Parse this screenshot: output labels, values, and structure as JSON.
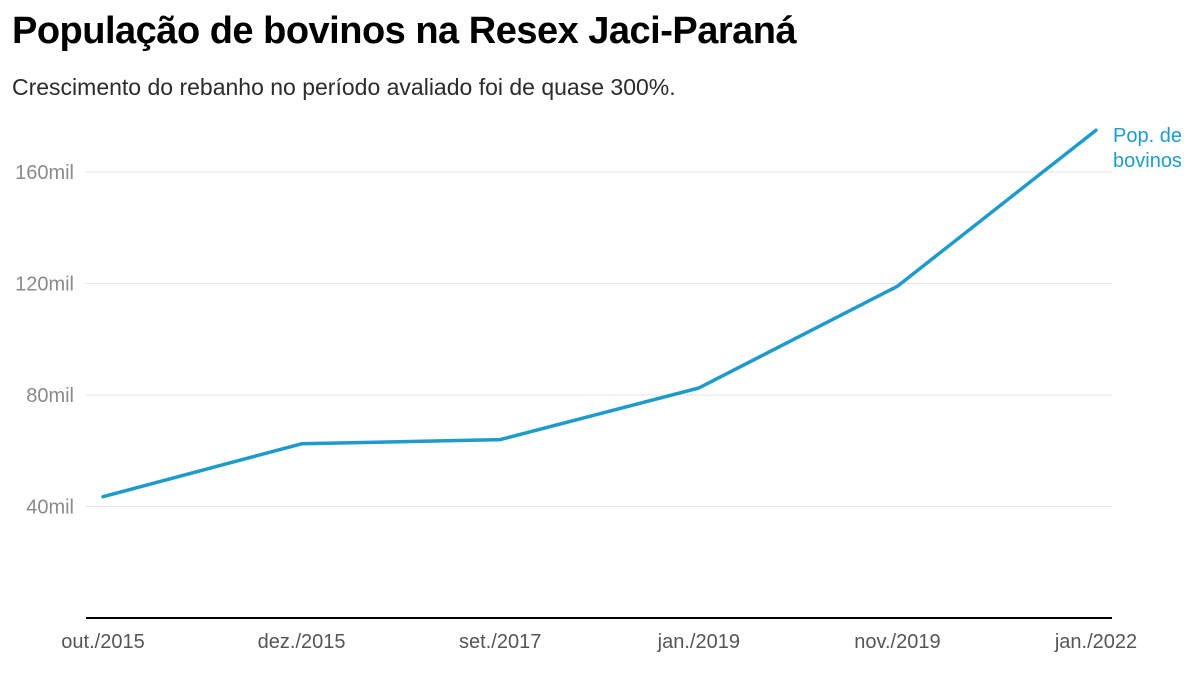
{
  "header": {
    "title": "População de bovinos na Resex Jaci-Paraná",
    "subtitle": "Crescimento do rebanho no período avaliado foi de quase 300%."
  },
  "colors": {
    "line": "#1e9bcc",
    "grid": "#e3e3e3",
    "axis": "#000000",
    "ytick": "#8a8a8a",
    "xtick": "#555555"
  },
  "chart_data": {
    "type": "line",
    "title": "População de bovinos na Resex Jaci-Paraná",
    "subtitle": "Crescimento do rebanho no período avaliado foi de quase 300%.",
    "categories": [
      "out./2015",
      "dez./2015",
      "set./2017",
      "jan./2019",
      "nov./2019",
      "jan./2022"
    ],
    "series": [
      {
        "name": "Pop. de bovinos",
        "label_lines": [
          "Pop. de",
          "bovinos"
        ],
        "values": [
          43500,
          62500,
          64000,
          82500,
          119000,
          175000
        ]
      }
    ],
    "y_ticks": [
      40000,
      80000,
      120000,
      160000
    ],
    "y_tick_labels": [
      "40mil",
      "80mil",
      "120mil",
      "160mil"
    ],
    "ylim": [
      0,
      175000
    ],
    "grid": true,
    "legend": "inline-end-of-line"
  }
}
